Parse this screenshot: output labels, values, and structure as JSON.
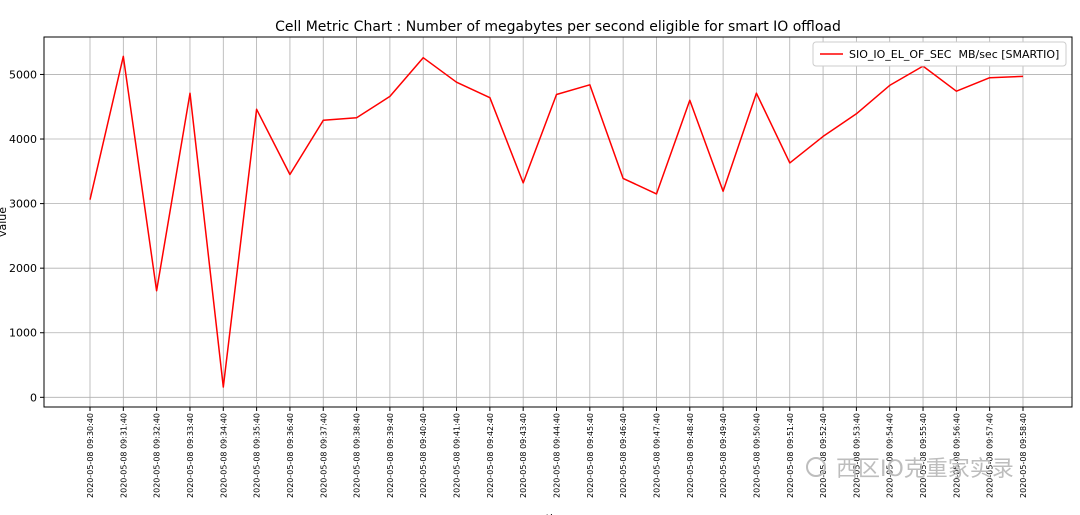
{
  "chart_data": {
    "type": "line",
    "title": "Cell Metric Chart : Number of megabytes per second eligible for smart IO offload",
    "xlabel": "time",
    "ylabel": "value",
    "x": [
      "2020-05-08 09:30:40",
      "2020-05-08 09:31:40",
      "2020-05-08 09:32:40",
      "2020-05-08 09:33:40",
      "2020-05-08 09:34:40",
      "2020-05-08 09:35:40",
      "2020-05-08 09:36:40",
      "2020-05-08 09:37:40",
      "2020-05-08 09:38:40",
      "2020-05-08 09:39:40",
      "2020-05-08 09:40:40",
      "2020-05-08 09:41:40",
      "2020-05-08 09:42:40",
      "2020-05-08 09:43:40",
      "2020-05-08 09:44:40",
      "2020-05-08 09:45:40",
      "2020-05-08 09:46:40",
      "2020-05-08 09:47:40",
      "2020-05-08 09:48:40",
      "2020-05-08 09:49:40",
      "2020-05-08 09:50:40",
      "2020-05-08 09:51:40",
      "2020-05-08 09:52:40",
      "2020-05-08 09:53:40",
      "2020-05-08 09:54:40",
      "2020-05-08 09:55:40",
      "2020-05-08 09:56:40",
      "2020-05-08 09:57:40",
      "2020-05-08 09:58:40"
    ],
    "series": [
      {
        "name": "SIO_IO_EL_OF_SEC  MB/sec [SMARTIO]",
        "color": "#ff0000",
        "values": [
          3060,
          5280,
          1650,
          4710,
          160,
          4460,
          3450,
          4290,
          4330,
          4660,
          5260,
          4880,
          4640,
          3320,
          4690,
          4840,
          3390,
          3150,
          4600,
          3190,
          4710,
          3630,
          4040,
          4390,
          4830,
          5130,
          4740,
          4950,
          4970
        ]
      }
    ],
    "ylim": [
      -150,
      5580
    ],
    "yticks": [
      0,
      1000,
      2000,
      3000,
      4000,
      5000
    ],
    "grid": true,
    "legend_position": "top-right"
  },
  "watermark": "西区IO克重家实录"
}
